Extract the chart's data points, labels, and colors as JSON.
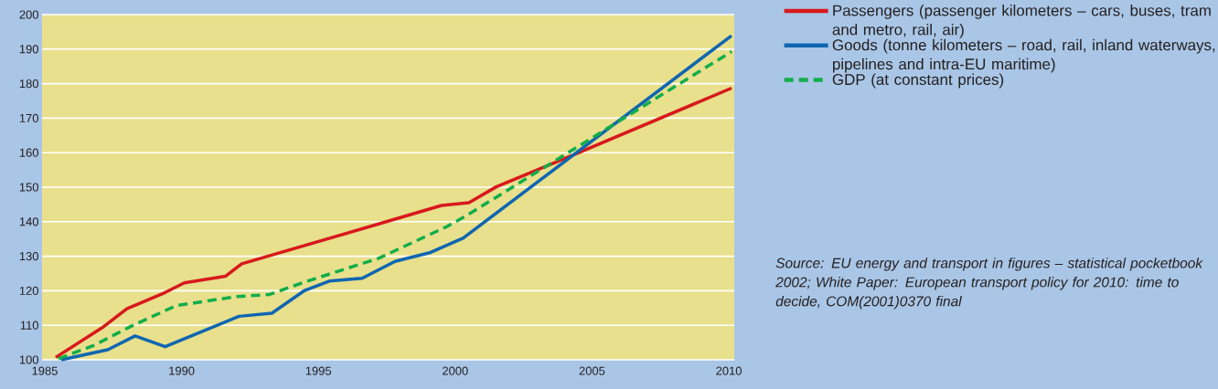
{
  "chart_data": {
    "type": "line",
    "xlim": [
      1984.9,
      2010.2
    ],
    "ylim": [
      100,
      200
    ],
    "xticks": [
      1985,
      1990,
      1995,
      2000,
      2005,
      2010
    ],
    "yticks": [
      100,
      110,
      120,
      130,
      140,
      150,
      160,
      170,
      180,
      190,
      200
    ],
    "grid": "y",
    "legend": "right",
    "marker": "none",
    "series": [
      {
        "name": "Passengers (passenger kilometers – cars, buses, tram and metro, rail, air)",
        "color": "#d7191c",
        "line_style": "solid",
        "x": [
          1985.4,
          1987.1,
          1988.0,
          1989.4,
          1990.1,
          1991.6,
          1992.2,
          1997.4,
          1999.5,
          2000.5,
          2001.5,
          2004.3,
          2010.1
        ],
        "values": [
          100.7,
          109.3,
          114.8,
          119.5,
          122.3,
          124.2,
          127.8,
          139.8,
          144.7,
          145.5,
          150.1,
          159.3,
          178.7
        ]
      },
      {
        "name": "Goods (tonne kilometers – road, rail, inland waterways, pipelines and intra-EU maritime)",
        "color": "#0f66b0",
        "line_style": "solid",
        "x": [
          1985.6,
          1987.3,
          1988.3,
          1989.4,
          1992.1,
          1993.3,
          1994.5,
          1995.4,
          1996.6,
          1997.8,
          1999.1,
          2000.3,
          2010.1
        ],
        "values": [
          100,
          102.9,
          106.9,
          103.8,
          112.6,
          113.5,
          120.1,
          122.8,
          123.6,
          128.5,
          131.1,
          135.3,
          193.9
        ]
      },
      {
        "name": "GDP (at constant prices)",
        "color": "#12ad4b",
        "line_style": "dashed",
        "x": [
          1985.5,
          1986.8,
          1988.1,
          1989.8,
          1992.0,
          1993.2,
          1994.6,
          1997.2,
          1999.7,
          2000.4,
          2010.1
        ],
        "values": [
          100.3,
          104.2,
          109.5,
          115.7,
          118.3,
          118.9,
          122.8,
          129.4,
          138.6,
          141.7,
          189.3
        ]
      }
    ],
    "annotations": [
      "Source: EU energy and transport in figures – statistical pocketbook 2002; White Paper: European transport policy for 2010: time to decide, COM(2001)0370 final"
    ]
  }
}
